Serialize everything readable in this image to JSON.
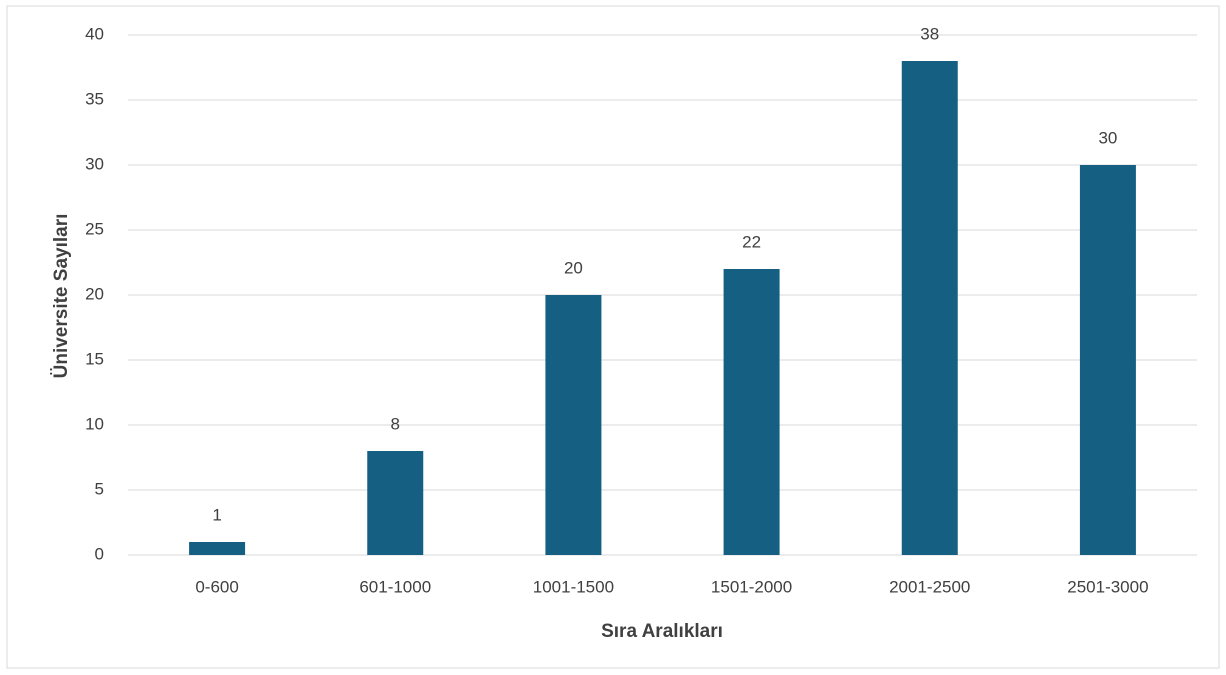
{
  "chart_data": {
    "type": "bar",
    "x_label": "Sıra Aralıkları",
    "y_label": "Üniversite Sayıları",
    "categories": [
      "0-600",
      "601-1000",
      "1001-1500",
      "1501-2000",
      "2001-2500",
      "2501-3000"
    ],
    "values": [
      1,
      8,
      20,
      22,
      38,
      30
    ],
    "color": "#156082",
    "ylim": [
      0,
      40
    ],
    "yticks": [
      0,
      5,
      10,
      15,
      20,
      25,
      30,
      35,
      40
    ],
    "grid": true,
    "data_labels": true
  }
}
